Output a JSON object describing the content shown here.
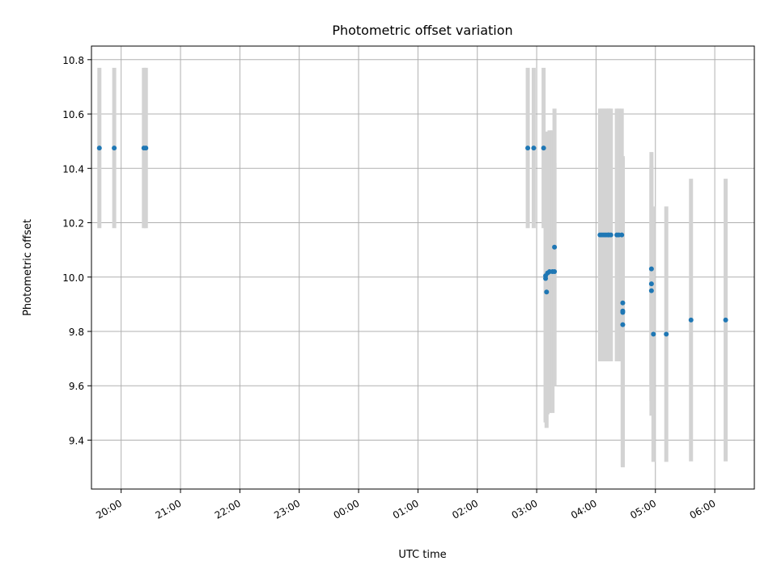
{
  "chart_data": {
    "type": "scatter",
    "title": "Photometric offset variation",
    "xlabel": "UTC time",
    "ylabel": "Photometric offset",
    "x_is_time": true,
    "x_ticks": [
      "20:00",
      "21:00",
      "22:00",
      "23:00",
      "00:00",
      "01:00",
      "02:00",
      "03:00",
      "04:00",
      "05:00",
      "06:00"
    ],
    "xlim": [
      "19:30",
      "06:40"
    ],
    "y_ticks": [
      "9.4",
      "9.6",
      "9.8",
      "10.0",
      "10.2",
      "10.4",
      "10.6",
      "10.8"
    ],
    "ylim": [
      9.22,
      10.85
    ],
    "grid": true,
    "colors": {
      "points": "#1f77b4",
      "errorbars": "#d3d3d3",
      "grid": "#b0b0b0",
      "axes": "#000000"
    },
    "points": [
      {
        "x": "19:38",
        "y": 10.475,
        "yerr": 0.295
      },
      {
        "x": "19:53",
        "y": 10.475,
        "yerr": 0.295
      },
      {
        "x": "20:23",
        "y": 10.475,
        "yerr": 0.295
      },
      {
        "x": "20:25",
        "y": 10.475,
        "yerr": 0.295
      },
      {
        "x": "02:51",
        "y": 10.475,
        "yerr": 0.295
      },
      {
        "x": "02:57",
        "y": 10.475,
        "yerr": 0.295
      },
      {
        "x": "03:07",
        "y": 10.475,
        "yerr": 0.295
      },
      {
        "x": "03:09",
        "y": 9.995,
        "yerr": 0.53
      },
      {
        "x": "03:09",
        "y": 10.005,
        "yerr": 0.53
      },
      {
        "x": "03:10",
        "y": 9.945,
        "yerr": 0.5
      },
      {
        "x": "03:11",
        "y": 10.015,
        "yerr": 0.52
      },
      {
        "x": "03:13",
        "y": 10.02,
        "yerr": 0.52
      },
      {
        "x": "03:16",
        "y": 10.02,
        "yerr": 0.52
      },
      {
        "x": "03:18",
        "y": 10.02,
        "yerr": 0.4
      },
      {
        "x": "03:18",
        "y": 10.11,
        "yerr": 0.51
      },
      {
        "x": "04:04",
        "y": 10.155,
        "yerr": 0.465
      },
      {
        "x": "04:06",
        "y": 10.155,
        "yerr": 0.465
      },
      {
        "x": "04:08",
        "y": 10.155,
        "yerr": 0.465
      },
      {
        "x": "04:10",
        "y": 10.155,
        "yerr": 0.465
      },
      {
        "x": "04:12",
        "y": 10.155,
        "yerr": 0.465
      },
      {
        "x": "04:13",
        "y": 10.155,
        "yerr": 0.465
      },
      {
        "x": "04:15",
        "y": 10.155,
        "yerr": 0.465
      },
      {
        "x": "04:21",
        "y": 10.155,
        "yerr": 0.465
      },
      {
        "x": "04:23",
        "y": 10.155,
        "yerr": 0.465
      },
      {
        "x": "04:26",
        "y": 10.155,
        "yerr": 0.465
      },
      {
        "x": "04:27",
        "y": 9.825,
        "yerr": 0.43
      },
      {
        "x": "04:27",
        "y": 9.87,
        "yerr": 0.57
      },
      {
        "x": "04:27",
        "y": 9.875,
        "yerr": 0.57
      },
      {
        "x": "04:27",
        "y": 9.905,
        "yerr": 0.53
      },
      {
        "x": "04:56",
        "y": 9.975,
        "yerr": 0.43
      },
      {
        "x": "04:56",
        "y": 10.03,
        "yerr": 0.43
      },
      {
        "x": "04:56",
        "y": 9.95,
        "yerr": 0.46
      },
      {
        "x": "04:58",
        "y": 9.79,
        "yerr": 0.47
      },
      {
        "x": "05:11",
        "y": 9.79,
        "yerr": 0.47
      },
      {
        "x": "05:36",
        "y": 9.842,
        "yerr": 0.52
      },
      {
        "x": "06:11",
        "y": 9.842,
        "yerr": 0.52
      }
    ]
  }
}
